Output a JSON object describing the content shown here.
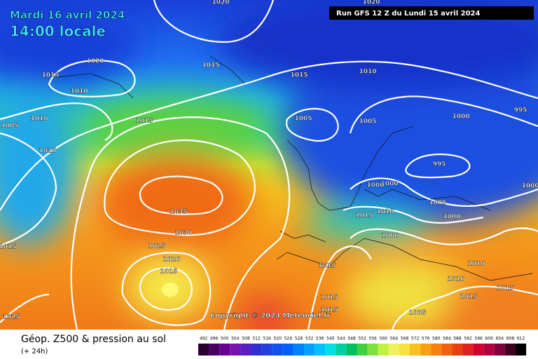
{
  "header": {
    "date": "Mardi 16 avril 2024",
    "time": "14:00 locale",
    "run": "Run GFS 12 Z du Lundi 15 avril 2024"
  },
  "map": {
    "isobar_labels": [
      "1035",
      "1030",
      "1025",
      "1020",
      "1015",
      "1015",
      "1010",
      "1020",
      "1015",
      "1015",
      "1010",
      "1005",
      "1005",
      "1000",
      "995",
      "995",
      "1000",
      "1000",
      "1005",
      "1000",
      "1010",
      "1015",
      "1000",
      "1015",
      "1010",
      "1010",
      "1015",
      "1015",
      "1015",
      "1015",
      "1005",
      "1010",
      "1005",
      "1015",
      "1015",
      "1015",
      "1025",
      "1000",
      "1020",
      "1020"
    ],
    "copyright": "Copyright © 2024 Meteociel.fr"
  },
  "legend": {
    "title": "Géop. Z500 & pression au sol",
    "subtitle": "(+ 24h)",
    "scale": [
      492,
      496,
      500,
      504,
      508,
      512,
      516,
      520,
      524,
      528,
      532,
      536,
      540,
      544,
      548,
      552,
      556,
      560,
      564,
      568,
      572,
      576,
      580,
      584,
      588,
      592,
      596,
      600,
      604,
      608,
      612
    ],
    "colors": [
      "#2a0030",
      "#4a0060",
      "#6a0090",
      "#7a10b0",
      "#5a20c0",
      "#3030d0",
      "#2040e0",
      "#1050f0",
      "#0060ff",
      "#0080ff",
      "#00a0ff",
      "#00c0ff",
      "#00e0e0",
      "#00d0a0",
      "#00c060",
      "#40d040",
      "#80e040",
      "#c0f040",
      "#f0f060",
      "#f8e040",
      "#f8c020",
      "#f8a010",
      "#f88010",
      "#f06010",
      "#e84010",
      "#e02020",
      "#d00030",
      "#b00040",
      "#800040",
      "#400020",
      "#000000"
    ]
  }
}
